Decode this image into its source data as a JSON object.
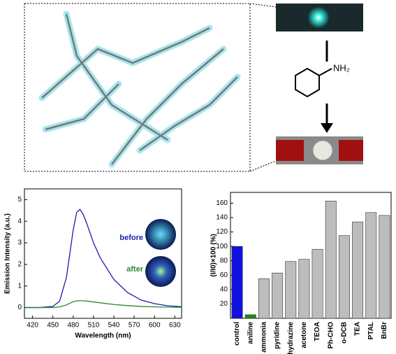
{
  "scheme": {
    "reagent_label": "NH₂"
  },
  "chart_data": [
    {
      "type": "line",
      "xlabel": "Wavelength (nm)",
      "ylabel": "Emission Intensity (a.u.)",
      "xlim": [
        408,
        640
      ],
      "ylim": [
        -0.5,
        5.5
      ],
      "xticks": [
        420,
        450,
        480,
        510,
        540,
        570,
        600,
        630
      ],
      "yticks": [
        0,
        1,
        2,
        3,
        4,
        5
      ],
      "annotations": [
        "before",
        "after"
      ],
      "x": [
        410,
        430,
        450,
        460,
        470,
        475,
        480,
        485,
        490,
        495,
        500,
        510,
        520,
        540,
        560,
        580,
        600,
        620,
        640
      ],
      "series": [
        {
          "name": "before",
          "color": "#1c1cb4",
          "values": [
            0,
            0,
            0.05,
            0.3,
            1.4,
            2.5,
            3.6,
            4.4,
            4.55,
            4.3,
            3.9,
            3.0,
            2.3,
            1.3,
            0.7,
            0.35,
            0.18,
            0.08,
            0.04
          ]
        },
        {
          "name": "after",
          "color": "#2a8a2a",
          "values": [
            0,
            0,
            0,
            0.03,
            0.12,
            0.2,
            0.27,
            0.31,
            0.32,
            0.31,
            0.3,
            0.26,
            0.22,
            0.14,
            0.09,
            0.05,
            0.03,
            0.02,
            0.01
          ]
        }
      ]
    },
    {
      "type": "bar",
      "ylabel": "(I/I0)×100 (%)",
      "ylim": [
        0,
        175
      ],
      "yticks": [
        20,
        40,
        60,
        80,
        100,
        120,
        140,
        160
      ],
      "categories": [
        "control",
        "aniline",
        "ammonia",
        "pyridine",
        "hydrazine",
        "acetone",
        "TEOA",
        "Ph-CHO",
        "o-DCB",
        "TEA",
        "PTAL",
        "BnBr"
      ],
      "values": [
        100,
        5,
        55,
        63,
        79,
        82,
        96,
        163,
        115,
        134,
        147,
        143
      ],
      "colors": [
        "#1010e0",
        "#1a8a1a",
        "#bdbdbd",
        "#bdbdbd",
        "#bdbdbd",
        "#bdbdbd",
        "#bdbdbd",
        "#bdbdbd",
        "#bdbdbd",
        "#bdbdbd",
        "#bdbdbd",
        "#bdbdbd"
      ]
    }
  ]
}
